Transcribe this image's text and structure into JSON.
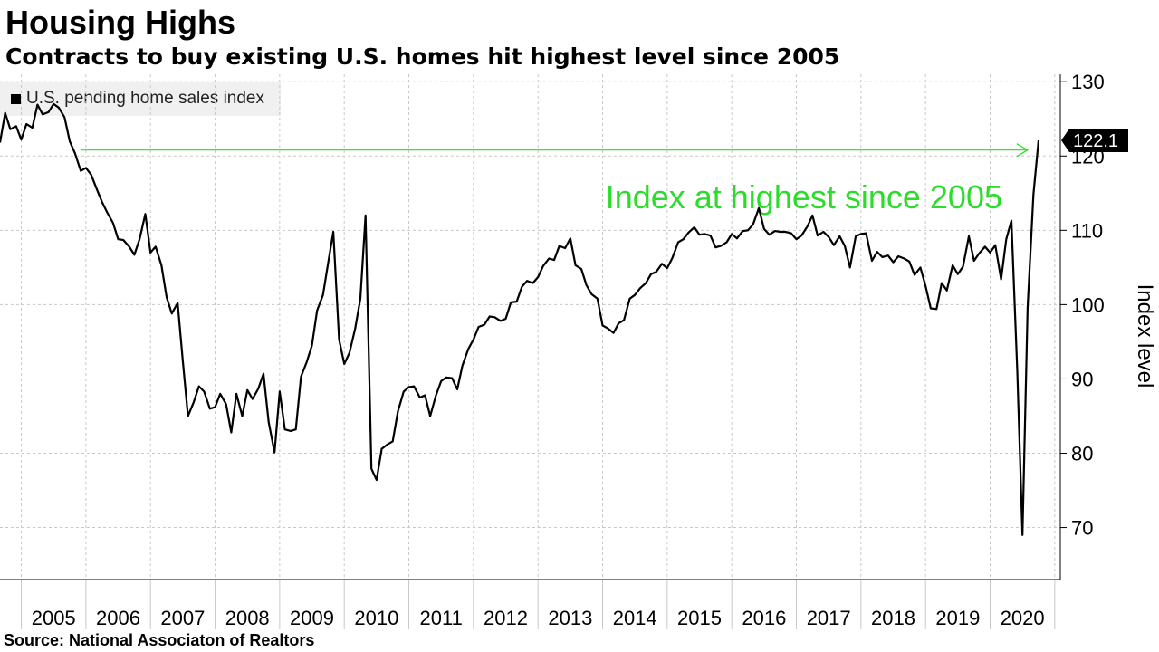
{
  "header": {
    "title": "Housing Highs",
    "subtitle": "Contracts to buy existing U.S. homes hit highest level since 2005"
  },
  "legend": {
    "label": "U.S. pending home sales index"
  },
  "source": "Source: National Associaton of Realtors",
  "colors": {
    "line": "#000000",
    "annotation": "#2bdc2b",
    "grid": "#c8c8c8",
    "legend_bg": "#f0f0f0"
  },
  "chart_data": {
    "type": "line",
    "title": "Housing Highs",
    "subtitle": "Contracts to buy existing U.S. homes hit highest level since 2005",
    "ylabel": "Index level",
    "xlabel": "",
    "ylim": [
      63,
      131
    ],
    "xlim": [
      2004.67,
      2020.75
    ],
    "y_ticks": [
      70,
      80,
      90,
      100,
      110,
      120,
      130
    ],
    "x_ticks": [
      "2005",
      "2006",
      "2007",
      "2008",
      "2009",
      "2010",
      "2011",
      "2012",
      "2013",
      "2014",
      "2015",
      "2016",
      "2017",
      "2018",
      "2019",
      "2020"
    ],
    "grid": true,
    "legend_position": "top-left",
    "last_value_label": "122.1",
    "annotation": {
      "text": "Index at highest since 2005",
      "y": 120.8
    },
    "series": [
      {
        "name": "U.S. pending home sales index",
        "points": [
          [
            2004.67,
            121.8
          ],
          [
            2004.75,
            125.8
          ],
          [
            2004.83,
            123.6
          ],
          [
            2004.92,
            124.0
          ],
          [
            2005.0,
            122.2
          ],
          [
            2005.08,
            124.3
          ],
          [
            2005.17,
            123.8
          ],
          [
            2005.25,
            126.9
          ],
          [
            2005.33,
            125.6
          ],
          [
            2005.42,
            125.9
          ],
          [
            2005.5,
            127.0
          ],
          [
            2005.58,
            126.5
          ],
          [
            2005.67,
            125.2
          ],
          [
            2005.75,
            122.0
          ],
          [
            2005.83,
            120.4
          ],
          [
            2005.92,
            118.0
          ],
          [
            2006.0,
            118.4
          ],
          [
            2006.08,
            117.5
          ],
          [
            2006.17,
            115.5
          ],
          [
            2006.25,
            113.8
          ],
          [
            2006.33,
            112.4
          ],
          [
            2006.42,
            111.0
          ],
          [
            2006.5,
            108.8
          ],
          [
            2006.58,
            108.7
          ],
          [
            2006.67,
            107.8
          ],
          [
            2006.75,
            106.7
          ],
          [
            2006.83,
            108.8
          ],
          [
            2006.92,
            112.2
          ],
          [
            2007.0,
            107.0
          ],
          [
            2007.08,
            107.8
          ],
          [
            2007.17,
            105.3
          ],
          [
            2007.25,
            101.0
          ],
          [
            2007.33,
            98.8
          ],
          [
            2007.42,
            100.2
          ],
          [
            2007.5,
            92.4
          ],
          [
            2007.58,
            85.0
          ],
          [
            2007.67,
            86.9
          ],
          [
            2007.75,
            89.0
          ],
          [
            2007.83,
            88.3
          ],
          [
            2007.92,
            86.0
          ],
          [
            2008.0,
            86.2
          ],
          [
            2008.08,
            88.0
          ],
          [
            2008.17,
            86.6
          ],
          [
            2008.25,
            82.8
          ],
          [
            2008.33,
            88.0
          ],
          [
            2008.42,
            85.0
          ],
          [
            2008.5,
            88.5
          ],
          [
            2008.58,
            87.3
          ],
          [
            2008.67,
            88.7
          ],
          [
            2008.75,
            90.7
          ],
          [
            2008.83,
            84.2
          ],
          [
            2008.92,
            80.1
          ],
          [
            2009.0,
            88.3
          ],
          [
            2009.08,
            83.2
          ],
          [
            2009.17,
            83.0
          ],
          [
            2009.25,
            83.2
          ],
          [
            2009.33,
            90.3
          ],
          [
            2009.42,
            92.3
          ],
          [
            2009.5,
            94.5
          ],
          [
            2009.58,
            99.2
          ],
          [
            2009.67,
            101.3
          ],
          [
            2009.75,
            105.6
          ],
          [
            2009.83,
            109.8
          ],
          [
            2009.92,
            95.3
          ],
          [
            2010.0,
            92.0
          ],
          [
            2010.08,
            93.5
          ],
          [
            2010.17,
            96.8
          ],
          [
            2010.25,
            100.8
          ],
          [
            2010.33,
            112.0
          ],
          [
            2010.42,
            77.9
          ],
          [
            2010.5,
            76.4
          ],
          [
            2010.58,
            80.6
          ],
          [
            2010.67,
            81.2
          ],
          [
            2010.75,
            81.6
          ],
          [
            2010.83,
            85.6
          ],
          [
            2010.92,
            88.3
          ],
          [
            2011.0,
            88.9
          ],
          [
            2011.08,
            89.0
          ],
          [
            2011.17,
            87.5
          ],
          [
            2011.25,
            87.8
          ],
          [
            2011.33,
            85.0
          ],
          [
            2011.42,
            87.8
          ],
          [
            2011.5,
            89.7
          ],
          [
            2011.58,
            90.2
          ],
          [
            2011.67,
            90.1
          ],
          [
            2011.75,
            88.6
          ],
          [
            2011.83,
            91.8
          ],
          [
            2011.92,
            94.0
          ],
          [
            2012.0,
            95.3
          ],
          [
            2012.08,
            97.0
          ],
          [
            2012.17,
            97.3
          ],
          [
            2012.25,
            98.4
          ],
          [
            2012.33,
            98.3
          ],
          [
            2012.42,
            97.8
          ],
          [
            2012.5,
            98.1
          ],
          [
            2012.58,
            100.3
          ],
          [
            2012.67,
            100.4
          ],
          [
            2012.75,
            102.4
          ],
          [
            2012.83,
            103.2
          ],
          [
            2012.92,
            102.9
          ],
          [
            2013.0,
            103.7
          ],
          [
            2013.08,
            105.2
          ],
          [
            2013.17,
            106.2
          ],
          [
            2013.25,
            106.0
          ],
          [
            2013.33,
            107.9
          ],
          [
            2013.42,
            107.6
          ],
          [
            2013.5,
            108.9
          ],
          [
            2013.58,
            105.3
          ],
          [
            2013.67,
            104.8
          ],
          [
            2013.75,
            102.6
          ],
          [
            2013.83,
            101.4
          ],
          [
            2013.92,
            100.8
          ],
          [
            2014.0,
            97.2
          ],
          [
            2014.08,
            96.8
          ],
          [
            2014.17,
            96.2
          ],
          [
            2014.25,
            97.5
          ],
          [
            2014.33,
            97.9
          ],
          [
            2014.42,
            100.8
          ],
          [
            2014.5,
            101.3
          ],
          [
            2014.58,
            102.2
          ],
          [
            2014.67,
            102.9
          ],
          [
            2014.75,
            104.1
          ],
          [
            2014.83,
            104.4
          ],
          [
            2014.92,
            105.5
          ],
          [
            2015.0,
            104.9
          ],
          [
            2015.08,
            106.3
          ],
          [
            2015.17,
            108.4
          ],
          [
            2015.25,
            108.8
          ],
          [
            2015.33,
            109.7
          ],
          [
            2015.42,
            110.4
          ],
          [
            2015.5,
            109.4
          ],
          [
            2015.58,
            109.5
          ],
          [
            2015.67,
            109.3
          ],
          [
            2015.75,
            107.7
          ],
          [
            2015.83,
            107.9
          ],
          [
            2015.92,
            108.4
          ],
          [
            2016.0,
            109.5
          ],
          [
            2016.08,
            108.9
          ],
          [
            2016.17,
            109.9
          ],
          [
            2016.25,
            110.0
          ],
          [
            2016.33,
            110.8
          ],
          [
            2016.42,
            113.0
          ],
          [
            2016.5,
            110.2
          ],
          [
            2016.58,
            109.4
          ],
          [
            2016.67,
            109.9
          ],
          [
            2016.75,
            109.8
          ],
          [
            2016.83,
            109.8
          ],
          [
            2016.92,
            109.6
          ],
          [
            2017.0,
            108.8
          ],
          [
            2017.08,
            109.3
          ],
          [
            2017.17,
            110.5
          ],
          [
            2017.25,
            112.0
          ],
          [
            2017.33,
            109.3
          ],
          [
            2017.42,
            109.8
          ],
          [
            2017.5,
            109.1
          ],
          [
            2017.58,
            108.0
          ],
          [
            2017.67,
            109.2
          ],
          [
            2017.75,
            107.9
          ],
          [
            2017.83,
            105.0
          ],
          [
            2017.92,
            109.2
          ],
          [
            2018.0,
            109.5
          ],
          [
            2018.08,
            109.6
          ],
          [
            2018.17,
            105.9
          ],
          [
            2018.25,
            107.1
          ],
          [
            2018.33,
            106.4
          ],
          [
            2018.42,
            106.6
          ],
          [
            2018.5,
            105.7
          ],
          [
            2018.58,
            106.5
          ],
          [
            2018.67,
            106.2
          ],
          [
            2018.75,
            105.8
          ],
          [
            2018.83,
            104.0
          ],
          [
            2018.92,
            105.0
          ],
          [
            2019.0,
            102.5
          ],
          [
            2019.08,
            99.5
          ],
          [
            2019.17,
            99.4
          ],
          [
            2019.25,
            102.9
          ],
          [
            2019.33,
            101.9
          ],
          [
            2019.42,
            105.3
          ],
          [
            2019.5,
            104.1
          ],
          [
            2019.58,
            105.1
          ],
          [
            2019.67,
            109.2
          ],
          [
            2019.75,
            105.9
          ],
          [
            2019.83,
            106.9
          ],
          [
            2019.92,
            107.8
          ],
          [
            2020.0,
            107.0
          ],
          [
            2020.08,
            108.0
          ],
          [
            2020.17,
            103.4
          ],
          [
            2020.25,
            108.8
          ],
          [
            2020.33,
            111.3
          ],
          [
            2020.42,
            91.0
          ],
          [
            2020.5,
            69.0
          ],
          [
            2020.58,
            99.6
          ],
          [
            2020.67,
            114.8
          ],
          [
            2020.75,
            122.1
          ]
        ]
      }
    ]
  }
}
